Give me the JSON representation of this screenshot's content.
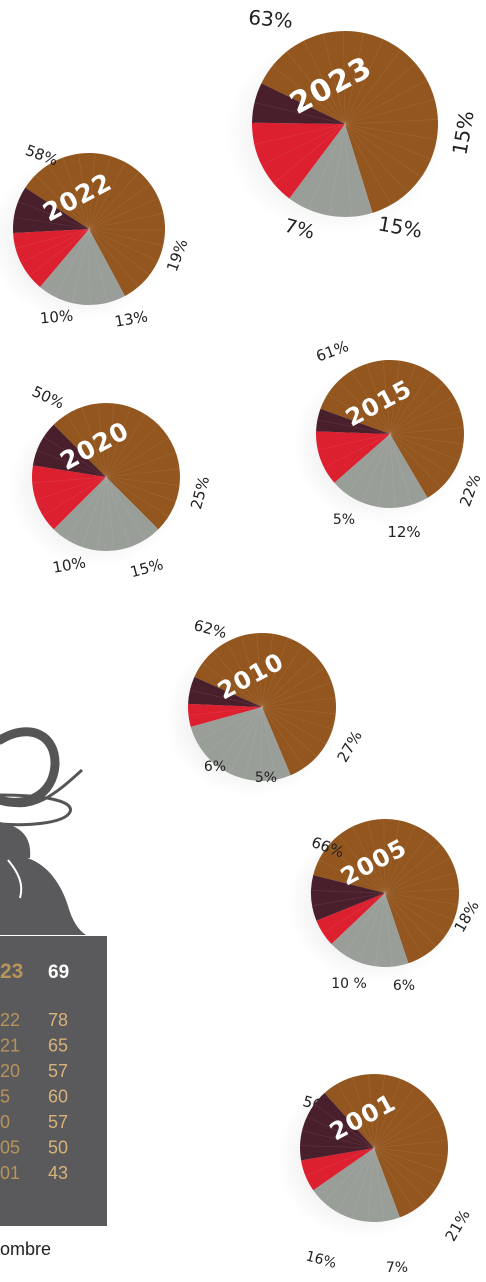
{
  "colors": {
    "brown": "#93561f",
    "grey": "#9a9e99",
    "red": "#dc2030",
    "plum": "#4a1f2c",
    "panel": "#5a5a5c",
    "gold": "#b8935a"
  },
  "chart_data": [
    {
      "type": "pie",
      "title": "2023",
      "series": [
        {
          "name": "",
          "value": 63,
          "label": "63%"
        },
        {
          "name": "",
          "value": 15,
          "label": "15%"
        },
        {
          "name": "",
          "value": 15,
          "label": "15%"
        },
        {
          "name": "",
          "value": 7,
          "label": "7%"
        }
      ]
    },
    {
      "type": "pie",
      "title": "2022",
      "series": [
        {
          "name": "",
          "value": 58,
          "label": "58%"
        },
        {
          "name": "",
          "value": 19,
          "label": "19%"
        },
        {
          "name": "",
          "value": 13,
          "label": "13%"
        },
        {
          "name": "",
          "value": 10,
          "label": "10%"
        }
      ]
    },
    {
      "type": "pie",
      "title": "2020",
      "series": [
        {
          "name": "",
          "value": 50,
          "label": "50%"
        },
        {
          "name": "",
          "value": 25,
          "label": "25%"
        },
        {
          "name": "",
          "value": 15,
          "label": "15%"
        },
        {
          "name": "",
          "value": 10,
          "label": "10%"
        }
      ]
    },
    {
      "type": "pie",
      "title": "2015",
      "series": [
        {
          "name": "",
          "value": 61,
          "label": "61%"
        },
        {
          "name": "",
          "value": 22,
          "label": "22%"
        },
        {
          "name": "",
          "value": 12,
          "label": "12%"
        },
        {
          "name": "",
          "value": 5,
          "label": "5%"
        }
      ]
    },
    {
      "type": "pie",
      "title": "2010",
      "series": [
        {
          "name": "",
          "value": 62,
          "label": "62%"
        },
        {
          "name": "",
          "value": 27,
          "label": "27%"
        },
        {
          "name": "",
          "value": 5,
          "label": "5%"
        },
        {
          "name": "",
          "value": 6,
          "label": "6%"
        }
      ]
    },
    {
      "type": "pie",
      "title": "2005",
      "series": [
        {
          "name": "",
          "value": 66,
          "label": "66%"
        },
        {
          "name": "",
          "value": 18,
          "label": "18%"
        },
        {
          "name": "",
          "value": 6,
          "label": "6%"
        },
        {
          "name": "",
          "value": 10,
          "label": "10 %"
        }
      ]
    },
    {
      "type": "pie",
      "title": "2001",
      "series": [
        {
          "name": "",
          "value": 56,
          "label": "56%"
        },
        {
          "name": "",
          "value": 21,
          "label": "21%"
        },
        {
          "name": "",
          "value": 7,
          "label": "7%"
        },
        {
          "name": "",
          "value": 16,
          "label": "16%"
        }
      ]
    },
    {
      "type": "table",
      "header": {
        "year": "23",
        "value": "69"
      },
      "rows": [
        {
          "year": "22",
          "value": "78"
        },
        {
          "year": "21",
          "value": "65"
        },
        {
          "year": "20",
          "value": "57"
        },
        {
          "year": "5",
          "value": "60"
        },
        {
          "year": "0",
          "value": "57"
        },
        {
          "year": "05",
          "value": "50"
        },
        {
          "year": "01",
          "value": "43"
        }
      ]
    }
  ],
  "footer_text": "ombre"
}
